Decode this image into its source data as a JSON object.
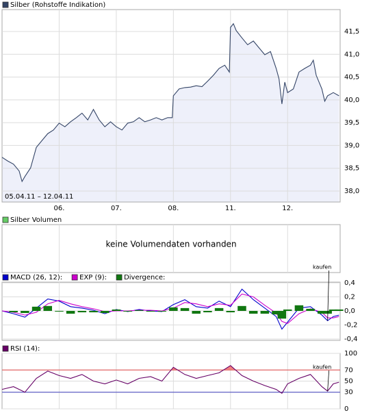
{
  "chart_data": [
    {
      "type": "area",
      "title": "Silber (Rohstoffe Indikation)",
      "subtitle": "05.04.11 – 12.04.11",
      "color": "#334466",
      "fill": "#eef0fa",
      "grid": true,
      "x": [
        0,
        0.1,
        0.2,
        0.3,
        0.35,
        0.4,
        0.5,
        0.6,
        0.7,
        0.8,
        0.9,
        1.0,
        1.1,
        1.2,
        1.3,
        1.4,
        1.5,
        1.6,
        1.7,
        1.8,
        1.9,
        2.0,
        2.1,
        2.2,
        2.3,
        2.4,
        2.5,
        2.6,
        2.7,
        2.8,
        2.9,
        2.98,
        3.0,
        3.1,
        3.2,
        3.3,
        3.4,
        3.5,
        3.6,
        3.7,
        3.8,
        3.9,
        3.98,
        4.0,
        4.05,
        4.1,
        4.2,
        4.3,
        4.4,
        4.5,
        4.6,
        4.7,
        4.8,
        4.85,
        4.9,
        4.95,
        5.0,
        5.1,
        5.2,
        5.3,
        5.4,
        5.45,
        5.5,
        5.6,
        5.65,
        5.7,
        5.8,
        5.9
      ],
      "values": [
        38.74,
        38.66,
        38.59,
        38.44,
        38.21,
        38.32,
        38.51,
        38.96,
        39.11,
        39.26,
        39.34,
        39.49,
        39.41,
        39.52,
        39.61,
        39.71,
        39.56,
        39.79,
        39.56,
        39.41,
        39.52,
        39.41,
        39.34,
        39.49,
        39.52,
        39.61,
        39.52,
        39.56,
        39.61,
        39.56,
        39.61,
        39.61,
        40.09,
        40.24,
        40.27,
        40.28,
        40.31,
        40.29,
        40.41,
        40.54,
        40.69,
        40.76,
        40.61,
        41.59,
        41.67,
        41.52,
        41.36,
        41.21,
        41.29,
        41.14,
        40.99,
        41.06,
        40.69,
        40.46,
        39.91,
        40.39,
        40.16,
        40.24,
        40.61,
        40.69,
        40.76,
        40.87,
        40.54,
        40.24,
        39.97,
        40.09,
        40.16,
        40.09
      ],
      "xlim": [
        0,
        5.92
      ],
      "xticks": [
        {
          "value": 1,
          "label": "06."
        },
        {
          "value": 2,
          "label": "07."
        },
        {
          "value": 3,
          "label": "08."
        },
        {
          "value": 4,
          "label": "11."
        },
        {
          "value": 5,
          "label": "12."
        }
      ],
      "ylim": [
        37.76,
        41.98
      ],
      "yticks": [
        {
          "value": 38.0,
          "label": "38,0"
        },
        {
          "value": 38.5,
          "label": "38,5"
        },
        {
          "value": 39.0,
          "label": "39,0"
        },
        {
          "value": 39.5,
          "label": "39,5"
        },
        {
          "value": 40.0,
          "label": "40,0"
        },
        {
          "value": 40.5,
          "label": "40,5"
        },
        {
          "value": 41.0,
          "label": "41,0"
        },
        {
          "value": 41.5,
          "label": "41,5"
        }
      ]
    },
    {
      "type": "bar",
      "title": "Silber Volumen",
      "color": "#66cc66",
      "annotation": "keine Volumendaten vorhanden"
    },
    {
      "type": "line",
      "grid": true,
      "annotation": "kaufen",
      "x": [
        0,
        0.2,
        0.4,
        0.6,
        0.8,
        1.0,
        1.2,
        1.4,
        1.6,
        1.8,
        2.0,
        2.2,
        2.4,
        2.6,
        2.8,
        3.0,
        3.2,
        3.4,
        3.6,
        3.8,
        4.0,
        4.2,
        4.4,
        4.6,
        4.8,
        4.9,
        5.0,
        5.2,
        5.4,
        5.6,
        5.7,
        5.8,
        5.9
      ],
      "series": [
        {
          "name": "MACD (26, 12):",
          "color": "#0000cc",
          "values": [
            0,
            -0.04,
            -0.09,
            0.04,
            0.17,
            0.14,
            0.06,
            0.04,
            0.01,
            -0.04,
            0.02,
            -0.01,
            0.02,
            0,
            -0.01,
            0.09,
            0.16,
            0.06,
            0.04,
            0.14,
            0.06,
            0.31,
            0.16,
            0.04,
            -0.08,
            -0.26,
            -0.16,
            0.04,
            0.06,
            -0.06,
            -0.14,
            -0.08,
            -0.06
          ]
        },
        {
          "name": "EXP (9):",
          "color": "#cc00cc",
          "values": [
            0,
            -0.02,
            -0.06,
            -0.02,
            0.1,
            0.15,
            0.1,
            0.06,
            0.03,
            -0.01,
            0,
            0,
            0.01,
            0.01,
            0,
            0.04,
            0.12,
            0.1,
            0.06,
            0.1,
            0.08,
            0.24,
            0.2,
            0.08,
            -0.03,
            -0.15,
            -0.18,
            -0.04,
            0.03,
            -0.02,
            -0.1,
            -0.1,
            -0.08
          ]
        },
        {
          "name": "Divergence:",
          "color": "#117711",
          "type": "bar",
          "values": [
            0,
            -0.02,
            -0.03,
            0.06,
            0.07,
            -0.01,
            -0.04,
            -0.02,
            -0.02,
            -0.03,
            0.02,
            -0.01,
            0.01,
            -0.01,
            -0.01,
            0.05,
            0.04,
            -0.04,
            -0.02,
            0.04,
            -0.02,
            0.07,
            -0.04,
            -0.04,
            -0.05,
            -0.11,
            0.02,
            0.08,
            0.03,
            -0.04,
            -0.04,
            0.02,
            0.02
          ]
        }
      ],
      "ylim": [
        -0.42,
        0.41
      ],
      "yticks": [
        {
          "value": -0.4,
          "label": "-0,4"
        },
        {
          "value": -0.2,
          "label": "-0,2"
        },
        {
          "value": 0,
          "label": "0,0"
        },
        {
          "value": 0.2,
          "label": "0,2"
        },
        {
          "value": 0.4,
          "label": "0,4"
        }
      ]
    },
    {
      "type": "line",
      "grid": true,
      "annotation": "kaufen",
      "x": [
        0,
        0.2,
        0.4,
        0.6,
        0.8,
        1.0,
        1.2,
        1.4,
        1.6,
        1.8,
        2.0,
        2.2,
        2.4,
        2.6,
        2.8,
        3.0,
        3.2,
        3.4,
        3.6,
        3.8,
        4.0,
        4.2,
        4.4,
        4.6,
        4.8,
        4.9,
        5.0,
        5.2,
        5.4,
        5.6,
        5.7,
        5.8,
        5.9
      ],
      "series": [
        {
          "name": "RSI (14):",
          "color": "#660066",
          "values": [
            35,
            40,
            30,
            55,
            68,
            60,
            55,
            62,
            50,
            45,
            52,
            45,
            55,
            58,
            50,
            75,
            62,
            55,
            60,
            65,
            78,
            60,
            50,
            42,
            35,
            28,
            45,
            55,
            62,
            40,
            32,
            45,
            48
          ]
        }
      ],
      "reference_lines": [
        {
          "value": 70,
          "color": "#e04040"
        },
        {
          "value": 30,
          "color": "#4040c0"
        }
      ],
      "overbought_color": "#f08080",
      "ylim": [
        0,
        100
      ],
      "yticks": [
        0,
        30,
        50,
        70,
        100
      ]
    }
  ]
}
